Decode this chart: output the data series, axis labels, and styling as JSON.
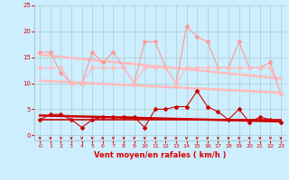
{
  "x": [
    0,
    1,
    2,
    3,
    4,
    5,
    6,
    7,
    8,
    9,
    10,
    11,
    12,
    13,
    14,
    15,
    16,
    17,
    18,
    19,
    20,
    21,
    22,
    23
  ],
  "bg_color": "#cceeff",
  "grid_color": "#aacccc",
  "xlabel": "Vent moyen/en rafales ( km/h )",
  "xlabel_color": "#dd0000",
  "tick_color": "#dd0000",
  "series_gust": [
    16,
    16,
    12,
    10,
    10,
    16,
    14,
    16,
    13,
    10,
    18,
    18,
    13,
    10,
    21,
    19,
    18,
    13,
    13,
    18,
    13,
    13,
    14,
    8
  ],
  "series_gust_color": "#ff9999",
  "series_trend_gust": [
    15.5,
    15.3,
    15.1,
    14.9,
    14.7,
    14.5,
    14.3,
    14.1,
    13.9,
    13.7,
    13.5,
    13.3,
    13.1,
    12.9,
    12.7,
    12.5,
    12.3,
    12.1,
    11.9,
    11.7,
    11.5,
    11.3,
    11.1,
    10.9
  ],
  "series_trend_gust_color": "#ffbbbb",
  "series_mean_gust": [
    13,
    13,
    13,
    10,
    10,
    13,
    13,
    13,
    13,
    10,
    13,
    13,
    13,
    10,
    13,
    13,
    13,
    13,
    13,
    13,
    13,
    13,
    13,
    8
  ],
  "series_mean_gust_color": "#ffbbbb",
  "series_trend_mean": [
    10.5,
    10.4,
    10.3,
    10.2,
    10.1,
    10.0,
    9.9,
    9.8,
    9.7,
    9.6,
    9.5,
    9.4,
    9.3,
    9.2,
    9.1,
    9.0,
    8.9,
    8.8,
    8.7,
    8.6,
    8.5,
    8.4,
    8.3,
    8.2
  ],
  "series_trend_mean_color": "#ffbbbb",
  "series_wind": [
    3,
    4,
    4,
    3,
    1.5,
    3,
    3.5,
    3.5,
    3.5,
    3.5,
    1.5,
    5,
    5,
    5.5,
    5.5,
    8.5,
    5.5,
    4.5,
    3,
    5,
    2.5,
    3.5,
    3,
    2.5
  ],
  "series_wind_color": "#cc0000",
  "series_trend_wind": [
    3.8,
    3.75,
    3.7,
    3.65,
    3.6,
    3.55,
    3.5,
    3.45,
    3.4,
    3.35,
    3.3,
    3.25,
    3.2,
    3.15,
    3.1,
    3.05,
    3.0,
    2.95,
    2.9,
    2.85,
    2.8,
    2.75,
    2.7,
    2.65
  ],
  "series_trend_wind_color": "#cc0000",
  "series_const_wind": [
    3,
    3,
    3,
    3,
    3,
    3,
    3,
    3,
    3,
    3,
    3,
    3,
    3,
    3,
    3,
    3,
    3,
    3,
    3,
    3,
    3,
    3,
    3,
    3
  ],
  "series_const_wind_color": "#cc0000",
  "ylim": [
    -1,
    25
  ],
  "yticks": [
    0,
    5,
    10,
    15,
    20,
    25
  ],
  "xlim": [
    -0.5,
    23.5
  ],
  "xticks": [
    0,
    1,
    2,
    3,
    4,
    5,
    6,
    7,
    8,
    9,
    10,
    11,
    12,
    13,
    14,
    15,
    16,
    17,
    18,
    19,
    20,
    21,
    22,
    23
  ],
  "arrow_color": "#cc0000",
  "marker": "D",
  "markersize": 2,
  "lw_thin": 0.8,
  "lw_medium": 1.2,
  "lw_thick": 1.8
}
